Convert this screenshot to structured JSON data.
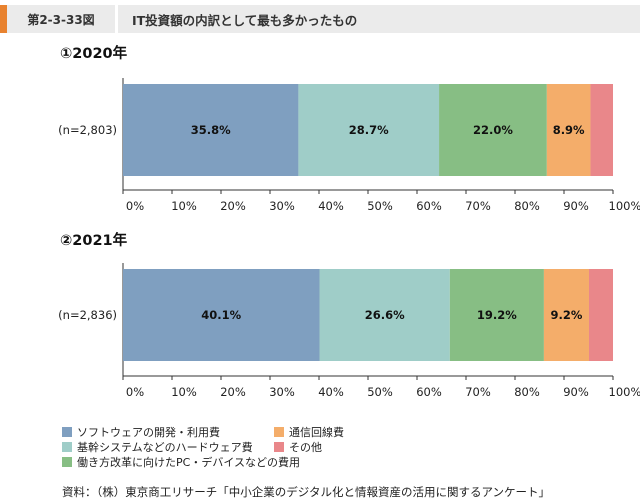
{
  "figure": {
    "number": "第2-3-33図",
    "title": "IT投資額の内訳として最も多かったもの"
  },
  "colors": {
    "accent": "#e8822f",
    "header_bg": "#ebebeb"
  },
  "legend_items": [
    {
      "label": "ソフトウェアの開発・利用費",
      "color": "#7f9fc0"
    },
    {
      "label": "通信回線費",
      "color": "#f4ad6a"
    },
    {
      "label": "基幹システムなどのハードウェア費",
      "color": "#9fcdc8"
    },
    {
      "label": "その他",
      "color": "#e9878a"
    },
    {
      "label": "働き方改革に向けたPC・デバイスなどの費用",
      "color": "#87be84"
    }
  ],
  "source": "資料：（株）東京商工リサーチ「中小企業のデジタル化と情報資産の活用に関するアンケート」",
  "chart_data": [
    {
      "type": "bar",
      "orientation": "horizontal-stacked-100",
      "title": "①2020年",
      "category": "(n=2,803)",
      "series": [
        {
          "name": "ソフトウェアの開発・利用費",
          "value": 35.8,
          "color": "#7f9fc0"
        },
        {
          "name": "基幹システムなどのハードウェア費",
          "value": 28.7,
          "color": "#9fcdc8"
        },
        {
          "name": "働き方改革に向けたPC・デバイスなどの費用",
          "value": 22.0,
          "color": "#87be84"
        },
        {
          "name": "通信回線費",
          "value": 8.9,
          "color": "#f4ad6a"
        },
        {
          "name": "その他",
          "value": 4.6,
          "color": "#e9878a"
        }
      ],
      "data_labels": [
        "35.8%",
        "28.7%",
        "22.0%",
        "8.9%",
        ""
      ],
      "xlim": [
        0,
        100
      ],
      "x_ticks": [
        "0%",
        "10%",
        "20%",
        "30%",
        "40%",
        "50%",
        "60%",
        "70%",
        "80%",
        "90%",
        "100%"
      ]
    },
    {
      "type": "bar",
      "orientation": "horizontal-stacked-100",
      "title": "②2021年",
      "category": "(n=2,836)",
      "series": [
        {
          "name": "ソフトウェアの開発・利用費",
          "value": 40.1,
          "color": "#7f9fc0"
        },
        {
          "name": "基幹システムなどのハードウェア費",
          "value": 26.6,
          "color": "#9fcdc8"
        },
        {
          "name": "働き方改革に向けたPC・デバイスなどの費用",
          "value": 19.2,
          "color": "#87be84"
        },
        {
          "name": "通信回線費",
          "value": 9.2,
          "color": "#f4ad6a"
        },
        {
          "name": "その他",
          "value": 4.9,
          "color": "#e9878a"
        }
      ],
      "data_labels": [
        "40.1%",
        "26.6%",
        "19.2%",
        "9.2%",
        ""
      ],
      "xlim": [
        0,
        100
      ],
      "x_ticks": [
        "0%",
        "10%",
        "20%",
        "30%",
        "40%",
        "50%",
        "60%",
        "70%",
        "80%",
        "90%",
        "100%"
      ]
    }
  ]
}
